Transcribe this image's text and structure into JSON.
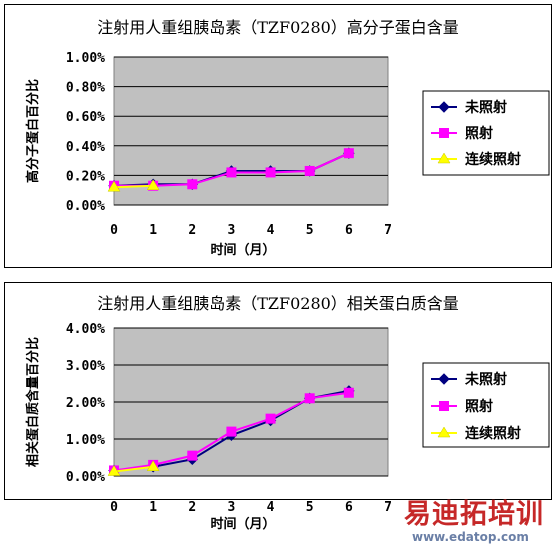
{
  "chart_data": [
    {
      "type": "line",
      "title": "注射用人重组胰岛素（TZF0280）高分子蛋白含量",
      "xlabel": "时间（月）",
      "ylabel": "高分子蛋白百分比",
      "xlim": [
        0,
        7
      ],
      "ylim": [
        0,
        1.0
      ],
      "xticks": [
        "0",
        "1",
        "2",
        "3",
        "4",
        "5",
        "6",
        "7"
      ],
      "yticks": [
        "0.00%",
        "0.20%",
        "0.40%",
        "0.60%",
        "0.80%",
        "1.00%"
      ],
      "ytick_values": [
        0,
        0.2,
        0.4,
        0.6,
        0.8,
        1.0
      ],
      "grid": true,
      "legend": "right",
      "series": [
        {
          "name": "未照射",
          "color": "#000080",
          "marker": "diamond",
          "x": [
            0,
            1,
            2,
            3,
            4,
            5,
            6
          ],
          "y": [
            0.13,
            0.14,
            0.14,
            0.23,
            0.23,
            0.23,
            0.35
          ]
        },
        {
          "name": "照射",
          "color": "#ff00ff",
          "marker": "square",
          "x": [
            0,
            1,
            2,
            3,
            4,
            5,
            6
          ],
          "y": [
            0.13,
            0.13,
            0.14,
            0.22,
            0.22,
            0.23,
            0.35
          ]
        },
        {
          "name": "连续照射",
          "color": "#ffff00",
          "marker": "triangle",
          "x": [
            0,
            1
          ],
          "y": [
            0.12,
            0.13
          ]
        }
      ]
    },
    {
      "type": "line",
      "title": "注射用人重组胰岛素（TZF0280）相关蛋白质含量",
      "xlabel": "时间（月）",
      "ylabel": "相关蛋白质含量百分比",
      "xlim": [
        0,
        7
      ],
      "ylim": [
        0,
        4.0
      ],
      "xticks": [
        "0",
        "1",
        "2",
        "3",
        "4",
        "5",
        "6",
        "7"
      ],
      "yticks": [
        "0.00%",
        "1.00%",
        "2.00%",
        "3.00%",
        "4.00%"
      ],
      "ytick_values": [
        0,
        1,
        2,
        3,
        4
      ],
      "grid": true,
      "legend": "right",
      "series": [
        {
          "name": "未照射",
          "color": "#000080",
          "marker": "diamond",
          "x": [
            0,
            1,
            2,
            3,
            4,
            5,
            6
          ],
          "y": [
            0.15,
            0.25,
            0.45,
            1.1,
            1.5,
            2.1,
            2.3
          ]
        },
        {
          "name": "照射",
          "color": "#ff00ff",
          "marker": "square",
          "x": [
            0,
            1,
            2,
            3,
            4,
            5,
            6
          ],
          "y": [
            0.15,
            0.3,
            0.55,
            1.2,
            1.55,
            2.1,
            2.25
          ]
        },
        {
          "name": "连续照射",
          "color": "#ffff00",
          "marker": "triangle",
          "x": [
            0,
            1
          ],
          "y": [
            0.12,
            0.25
          ]
        }
      ]
    }
  ],
  "watermark": {
    "text": "易迪拓培训",
    "url": "www.edatop.com"
  }
}
